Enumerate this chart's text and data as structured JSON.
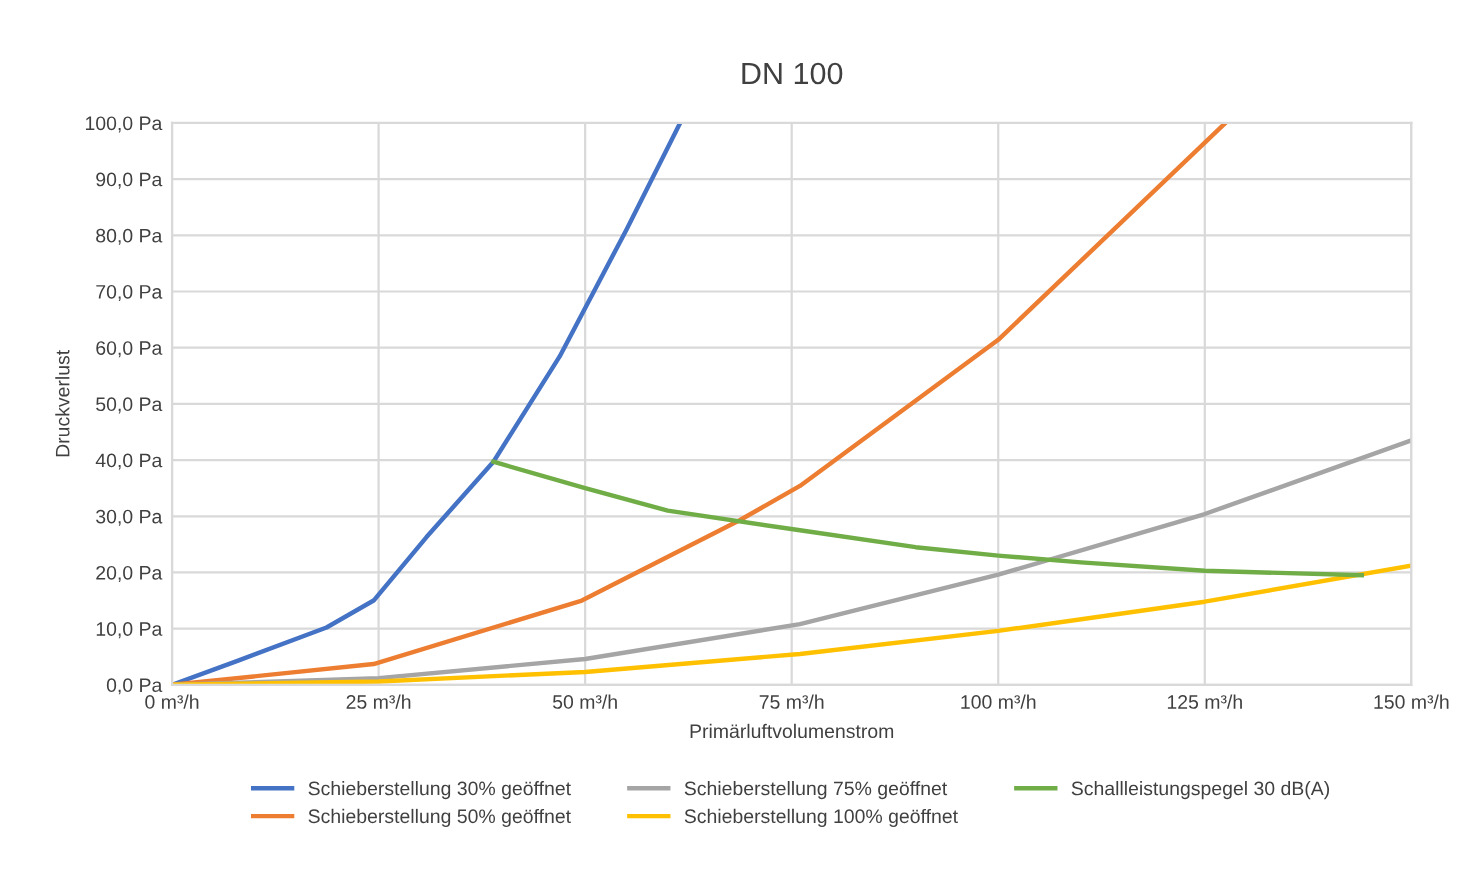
{
  "chart_data": {
    "type": "line",
    "title": "DN 100",
    "xlabel": "Primärluftvolumenstrom",
    "ylabel": "Druckverlust",
    "xlim": [
      0,
      150
    ],
    "ylim": [
      0,
      100
    ],
    "xticks": [
      {
        "value": 0,
        "label": "0 m³/h"
      },
      {
        "value": 25,
        "label": "25 m³/h"
      },
      {
        "value": 50,
        "label": "50 m³/h"
      },
      {
        "value": 75,
        "label": "75 m³/h"
      },
      {
        "value": 100,
        "label": "100 m³/h"
      },
      {
        "value": 125,
        "label": "125 m³/h"
      },
      {
        "value": 150,
        "label": "150 m³/h"
      }
    ],
    "yticks": [
      {
        "value": 0,
        "label": "0,0 Pa"
      },
      {
        "value": 10,
        "label": "10,0 Pa"
      },
      {
        "value": 20,
        "label": "20,0 Pa"
      },
      {
        "value": 30,
        "label": "30,0 Pa"
      },
      {
        "value": 40,
        "label": "40,0 Pa"
      },
      {
        "value": 50,
        "label": "50,0 Pa"
      },
      {
        "value": 60,
        "label": "60,0 Pa"
      },
      {
        "value": 70,
        "label": "70,0 Pa"
      },
      {
        "value": 80,
        "label": "80,0 Pa"
      },
      {
        "value": 90,
        "label": "90,0 Pa"
      },
      {
        "value": 100,
        "label": "100,0 Pa"
      }
    ],
    "grid": true,
    "legend": "bottom",
    "marker": "none",
    "line_style": "solid",
    "series": [
      {
        "name": "Schieberstellung 30% geöffnet",
        "color": "#4472c4",
        "x": [
          0,
          8,
          18.7,
          24.4,
          30.8,
          38.9,
          46.9,
          55,
          61.5
        ],
        "values": [
          0,
          4.3,
          10.2,
          15,
          26.3,
          39.7,
          58.4,
          81,
          100
        ]
      },
      {
        "name": "Schieberstellung 50% geöffnet",
        "color": "#ed7d31",
        "x": [
          0,
          24.4,
          49.6,
          68.7,
          76,
          100,
          127.5
        ],
        "values": [
          0,
          3.7,
          15,
          29.3,
          35.4,
          61.4,
          100
        ]
      },
      {
        "name": "Schieberstellung 75% geöffnet",
        "color": "#a5a5a5",
        "x": [
          0,
          25,
          50,
          76,
          100,
          125,
          150
        ],
        "values": [
          0,
          1.2,
          4.6,
          10.8,
          19.6,
          30.4,
          43.5
        ]
      },
      {
        "name": "Schieberstellung 100% geöffnet",
        "color": "#ffc000",
        "x": [
          0,
          25,
          50,
          76,
          100,
          125,
          150
        ],
        "values": [
          0,
          0.6,
          2.3,
          5.5,
          9.6,
          14.8,
          21.2
        ]
      },
      {
        "name": "Schallleistungspegel 30 dB(A)",
        "color": "#70ad47",
        "x": [
          38.9,
          50,
          60,
          76,
          90,
          100,
          110,
          125,
          144
        ],
        "values": [
          39.7,
          35,
          31,
          27.5,
          24.5,
          23,
          21.8,
          20.3,
          19.5
        ]
      }
    ]
  }
}
